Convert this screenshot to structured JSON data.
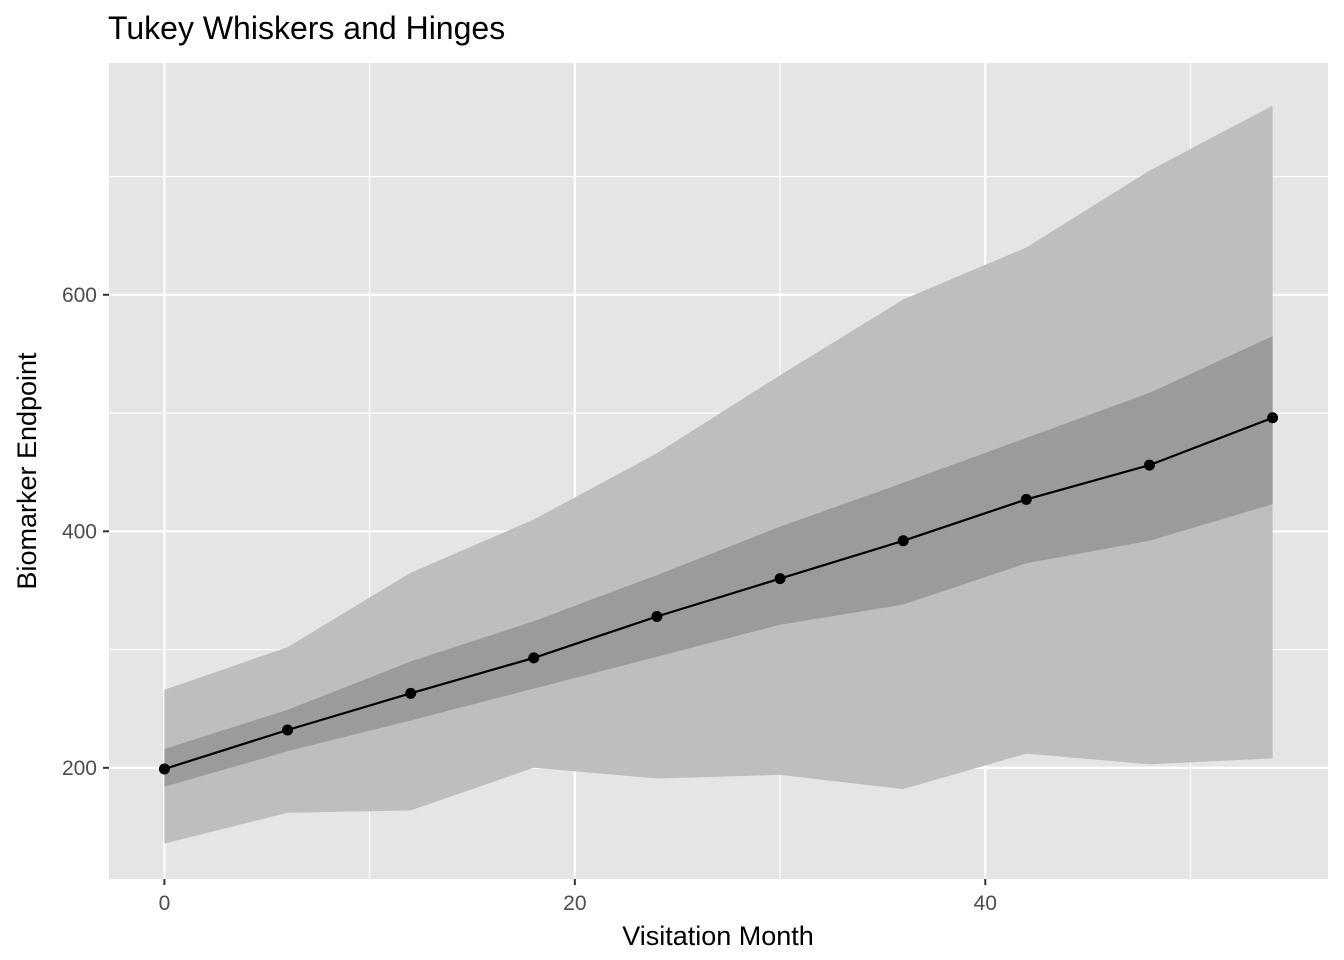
{
  "chart_data": {
    "type": "line",
    "title": "Tukey Whiskers and Hinges",
    "xlabel": "Visitation Month",
    "ylabel": "Biomarker Endpoint",
    "xlim": [
      -2.7,
      56.7
    ],
    "ylim": [
      106,
      796
    ],
    "x_ticks": [
      0,
      20,
      40
    ],
    "x_tick_labels": [
      "0",
      "20",
      "40"
    ],
    "y_ticks": [
      200,
      400,
      600
    ],
    "y_tick_labels": [
      "200",
      "400",
      "600"
    ],
    "x_minor": [
      10,
      30,
      50
    ],
    "y_minor": [
      300,
      500,
      700
    ],
    "grid": true,
    "background": "#e5e5e5",
    "gridline_color": "#ffffff",
    "x": [
      0,
      6,
      12,
      18,
      24,
      30,
      36,
      42,
      48,
      54
    ],
    "series": [
      {
        "role": "median",
        "values": [
          199,
          232,
          263,
          293,
          328,
          360,
          392,
          427,
          456,
          496
        ]
      },
      {
        "role": "lower-hinge",
        "values": [
          184,
          214,
          240,
          267,
          294,
          321,
          338,
          373,
          392,
          423
        ]
      },
      {
        "role": "upper-hinge",
        "values": [
          216,
          249,
          290,
          324,
          363,
          404,
          441,
          479,
          517,
          565
        ]
      },
      {
        "role": "lower-whisker",
        "values": [
          136,
          162,
          164,
          200,
          191,
          194,
          182,
          212,
          203,
          208
        ]
      },
      {
        "role": "upper-whisker",
        "values": [
          266,
          302,
          365,
          410,
          466,
          532,
          596,
          640,
          705,
          760
        ]
      }
    ],
    "colors": {
      "whisker_band": "#bebebe",
      "hinge_band": "#9b9b9b",
      "line": "#000000"
    }
  }
}
